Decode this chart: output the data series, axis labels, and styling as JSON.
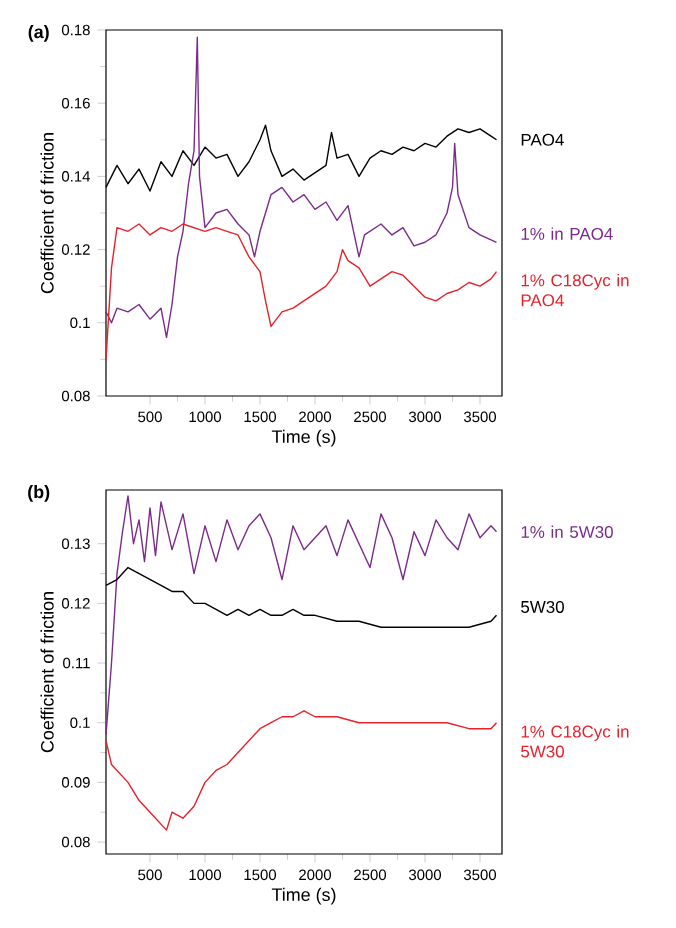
{
  "chart_data": [
    {
      "type": "line",
      "title": "(a)",
      "xlabel": "Time (s)",
      "ylabel": "Coefficient of friction",
      "xlim": [
        100,
        3700
      ],
      "ylim": [
        0.08,
        0.18
      ],
      "xticks": [
        500,
        1000,
        1500,
        2000,
        2500,
        3000,
        3500
      ],
      "yticks": [
        0.08,
        0.1,
        0.12,
        0.14,
        0.16,
        0.18
      ],
      "grid": false,
      "legend": false,
      "marker": "none",
      "line_style": "solid",
      "series": [
        {
          "name": "PAO4",
          "color": "#000000",
          "x": [
            100,
            200,
            300,
            400,
            500,
            600,
            700,
            800,
            900,
            1000,
            1100,
            1200,
            1300,
            1400,
            1500,
            1550,
            1600,
            1700,
            1800,
            1900,
            2000,
            2100,
            2150,
            2200,
            2300,
            2400,
            2500,
            2600,
            2700,
            2800,
            2900,
            3000,
            3100,
            3200,
            3300,
            3400,
            3500,
            3600,
            3650
          ],
          "values": [
            0.137,
            0.143,
            0.138,
            0.142,
            0.136,
            0.144,
            0.14,
            0.147,
            0.143,
            0.148,
            0.145,
            0.146,
            0.14,
            0.144,
            0.15,
            0.154,
            0.147,
            0.14,
            0.142,
            0.139,
            0.141,
            0.143,
            0.152,
            0.145,
            0.146,
            0.14,
            0.145,
            0.147,
            0.146,
            0.148,
            0.147,
            0.149,
            0.148,
            0.151,
            0.153,
            0.152,
            0.153,
            0.151,
            0.15
          ]
        },
        {
          "name": "1% in PAO4",
          "color": "#7b2a8c",
          "x": [
            100,
            150,
            200,
            300,
            400,
            500,
            600,
            650,
            700,
            750,
            800,
            850,
            900,
            930,
            950,
            1000,
            1100,
            1200,
            1300,
            1400,
            1450,
            1500,
            1600,
            1700,
            1800,
            1900,
            2000,
            2100,
            2200,
            2300,
            2400,
            2450,
            2600,
            2700,
            2800,
            2900,
            3000,
            3100,
            3200,
            3250,
            3270,
            3300,
            3400,
            3500,
            3650
          ],
          "values": [
            0.103,
            0.1,
            0.104,
            0.103,
            0.105,
            0.101,
            0.104,
            0.096,
            0.105,
            0.118,
            0.125,
            0.138,
            0.147,
            0.178,
            0.14,
            0.126,
            0.13,
            0.131,
            0.127,
            0.124,
            0.118,
            0.125,
            0.135,
            0.137,
            0.133,
            0.135,
            0.131,
            0.133,
            0.128,
            0.132,
            0.118,
            0.124,
            0.127,
            0.124,
            0.126,
            0.121,
            0.122,
            0.124,
            0.13,
            0.137,
            0.149,
            0.135,
            0.126,
            0.124,
            0.122
          ]
        },
        {
          "name": "1% C18Cyc in PAO4",
          "color": "#e8202a",
          "x": [
            100,
            150,
            200,
            300,
            400,
            500,
            600,
            700,
            800,
            900,
            1000,
            1100,
            1200,
            1300,
            1400,
            1500,
            1550,
            1600,
            1700,
            1800,
            1900,
            2000,
            2100,
            2200,
            2250,
            2300,
            2400,
            2500,
            2600,
            2700,
            2800,
            2900,
            3000,
            3100,
            3200,
            3300,
            3400,
            3500,
            3600,
            3650
          ],
          "values": [
            0.09,
            0.115,
            0.126,
            0.125,
            0.127,
            0.124,
            0.126,
            0.125,
            0.127,
            0.126,
            0.125,
            0.126,
            0.125,
            0.124,
            0.118,
            0.114,
            0.106,
            0.099,
            0.103,
            0.104,
            0.106,
            0.108,
            0.11,
            0.114,
            0.12,
            0.117,
            0.115,
            0.11,
            0.112,
            0.114,
            0.113,
            0.11,
            0.107,
            0.106,
            0.108,
            0.109,
            0.111,
            0.11,
            0.112,
            0.114
          ]
        }
      ]
    },
    {
      "type": "line",
      "title": "(b)",
      "xlabel": "Time (s)",
      "ylabel": "Coefficient of friction",
      "xlim": [
        100,
        3700
      ],
      "ylim": [
        0.078,
        0.139
      ],
      "xticks": [
        500,
        1000,
        1500,
        2000,
        2500,
        3000,
        3500
      ],
      "yticks": [
        0.08,
        0.09,
        0.1,
        0.11,
        0.12,
        0.13
      ],
      "grid": false,
      "legend": false,
      "marker": "none",
      "line_style": "solid",
      "series": [
        {
          "name": "1% in 5W30",
          "color": "#7b2a8c",
          "x": [
            100,
            150,
            200,
            250,
            300,
            350,
            400,
            450,
            500,
            550,
            600,
            700,
            800,
            900,
            1000,
            1100,
            1200,
            1300,
            1400,
            1500,
            1600,
            1700,
            1800,
            1900,
            2000,
            2100,
            2200,
            2300,
            2400,
            2500,
            2600,
            2700,
            2800,
            2900,
            3000,
            3100,
            3200,
            3300,
            3400,
            3500,
            3600,
            3650
          ],
          "values": [
            0.098,
            0.11,
            0.125,
            0.132,
            0.138,
            0.13,
            0.134,
            0.127,
            0.136,
            0.128,
            0.137,
            0.129,
            0.135,
            0.125,
            0.133,
            0.127,
            0.134,
            0.129,
            0.133,
            0.135,
            0.131,
            0.124,
            0.133,
            0.129,
            0.131,
            0.133,
            0.128,
            0.134,
            0.13,
            0.126,
            0.135,
            0.131,
            0.124,
            0.132,
            0.128,
            0.134,
            0.131,
            0.129,
            0.135,
            0.131,
            0.133,
            0.132
          ]
        },
        {
          "name": "5W30",
          "color": "#000000",
          "x": [
            100,
            200,
            300,
            400,
            500,
            600,
            700,
            800,
            900,
            1000,
            1100,
            1200,
            1300,
            1400,
            1500,
            1600,
            1700,
            1800,
            1900,
            2000,
            2200,
            2400,
            2600,
            2800,
            3000,
            3200,
            3400,
            3600,
            3650
          ],
          "values": [
            0.123,
            0.124,
            0.126,
            0.125,
            0.124,
            0.123,
            0.122,
            0.122,
            0.12,
            0.12,
            0.119,
            0.118,
            0.119,
            0.118,
            0.119,
            0.118,
            0.118,
            0.119,
            0.118,
            0.118,
            0.117,
            0.117,
            0.116,
            0.116,
            0.116,
            0.116,
            0.116,
            0.117,
            0.118
          ]
        },
        {
          "name": "1% C18Cyc in 5W30",
          "color": "#e8202a",
          "x": [
            100,
            150,
            200,
            300,
            400,
            500,
            600,
            650,
            700,
            800,
            900,
            1000,
            1100,
            1200,
            1300,
            1400,
            1500,
            1600,
            1700,
            1800,
            1900,
            2000,
            2200,
            2400,
            2600,
            2800,
            3000,
            3200,
            3400,
            3600,
            3650
          ],
          "values": [
            0.097,
            0.093,
            0.092,
            0.09,
            0.087,
            0.085,
            0.083,
            0.082,
            0.085,
            0.084,
            0.086,
            0.09,
            0.092,
            0.093,
            0.095,
            0.097,
            0.099,
            0.1,
            0.101,
            0.101,
            0.102,
            0.101,
            0.101,
            0.1,
            0.1,
            0.1,
            0.1,
            0.1,
            0.099,
            0.099,
            0.1
          ]
        }
      ]
    }
  ]
}
